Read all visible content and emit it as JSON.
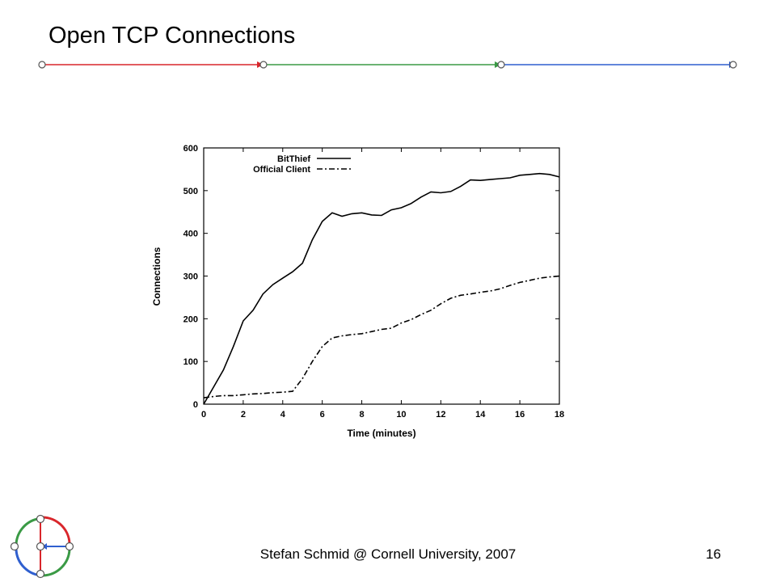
{
  "slide": {
    "title": "Open TCP Connections",
    "footer": "Stefan Schmid @ Cornell University, 2007",
    "page_number": "16"
  },
  "header_line": {
    "colors": [
      "#d9262b",
      "#3a9a45",
      "#2f5fcf"
    ]
  },
  "logo": {
    "icon": "graph-network-logo-icon",
    "colors": [
      "#d9262b",
      "#3a9a45",
      "#2f5fcf"
    ]
  },
  "chart_data": {
    "type": "line",
    "xlabel": "Time (minutes)",
    "ylabel": "Connections",
    "xlim": [
      0,
      18
    ],
    "ylim": [
      0,
      600
    ],
    "xticks": [
      0,
      2,
      4,
      6,
      8,
      10,
      12,
      14,
      16,
      18
    ],
    "yticks": [
      0,
      100,
      200,
      300,
      400,
      500,
      600
    ],
    "grid": false,
    "legend_position": "top-left",
    "series": [
      {
        "name": "BitThief",
        "style": "solid",
        "x": [
          0,
          0.5,
          1,
          1.5,
          2,
          2.5,
          3,
          3.5,
          4,
          4.5,
          5,
          5.5,
          6,
          6.5,
          7,
          7.5,
          8,
          8.5,
          9,
          9.5,
          10,
          10.5,
          11,
          11.5,
          12,
          12.5,
          13,
          13.5,
          14,
          14.5,
          15,
          15.5,
          16,
          16.5,
          17,
          17.5,
          18
        ],
        "y": [
          0,
          40,
          80,
          135,
          195,
          220,
          258,
          280,
          295,
          310,
          330,
          385,
          428,
          448,
          440,
          446,
          448,
          443,
          442,
          455,
          460,
          470,
          485,
          497,
          495,
          498,
          510,
          525,
          524,
          526,
          528,
          530,
          536,
          538,
          540,
          538,
          532
        ]
      },
      {
        "name": "Official Client",
        "style": "dash-dot",
        "x": [
          0,
          0.5,
          1,
          1.5,
          2,
          2.5,
          3,
          3.5,
          4,
          4.5,
          5,
          5.5,
          6,
          6.5,
          7,
          7.5,
          8,
          8.5,
          9,
          9.5,
          10,
          10.5,
          11,
          11.5,
          12,
          12.5,
          13,
          13.5,
          14,
          14.5,
          15,
          15.5,
          16,
          16.5,
          17,
          17.5,
          18
        ],
        "y": [
          15,
          18,
          20,
          20,
          22,
          24,
          25,
          27,
          28,
          30,
          60,
          100,
          135,
          155,
          160,
          163,
          165,
          170,
          175,
          178,
          190,
          198,
          210,
          220,
          235,
          248,
          255,
          258,
          262,
          265,
          270,
          278,
          285,
          290,
          295,
          298,
          300
        ]
      }
    ]
  }
}
